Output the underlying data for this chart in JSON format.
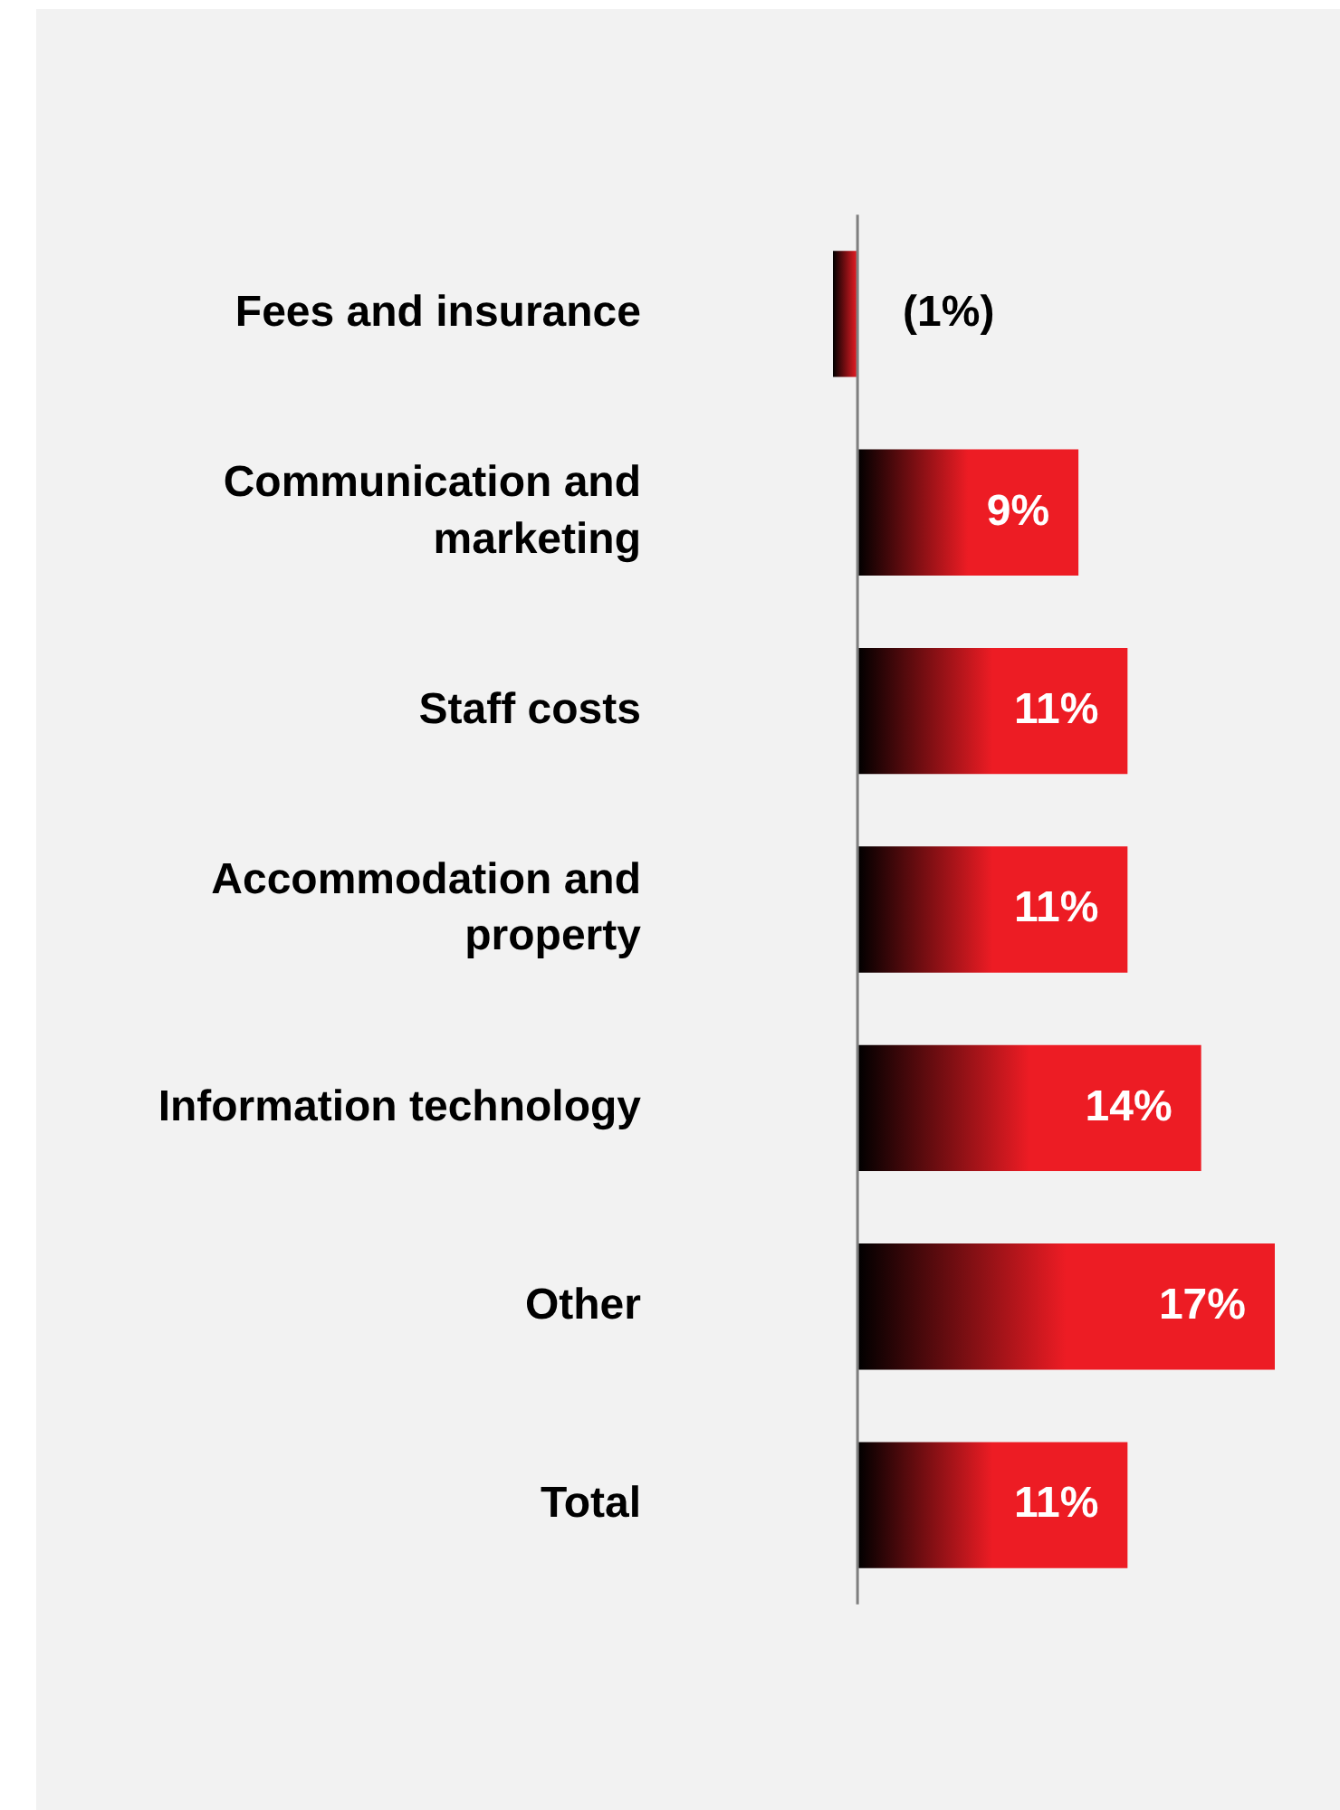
{
  "chart_data": {
    "type": "bar",
    "orientation": "horizontal",
    "categories": [
      "Fees and insurance",
      "Communication and marketing",
      "Staff costs",
      "Accommodation and property",
      "Information technology",
      "Other",
      "Total"
    ],
    "values": [
      -1,
      9,
      11,
      11,
      14,
      17,
      11
    ],
    "value_labels": [
      "(1%)",
      "9%",
      "11%",
      "11%",
      "14%",
      "17%",
      "11%"
    ],
    "color": "#ed1c24",
    "legend": false
  }
}
